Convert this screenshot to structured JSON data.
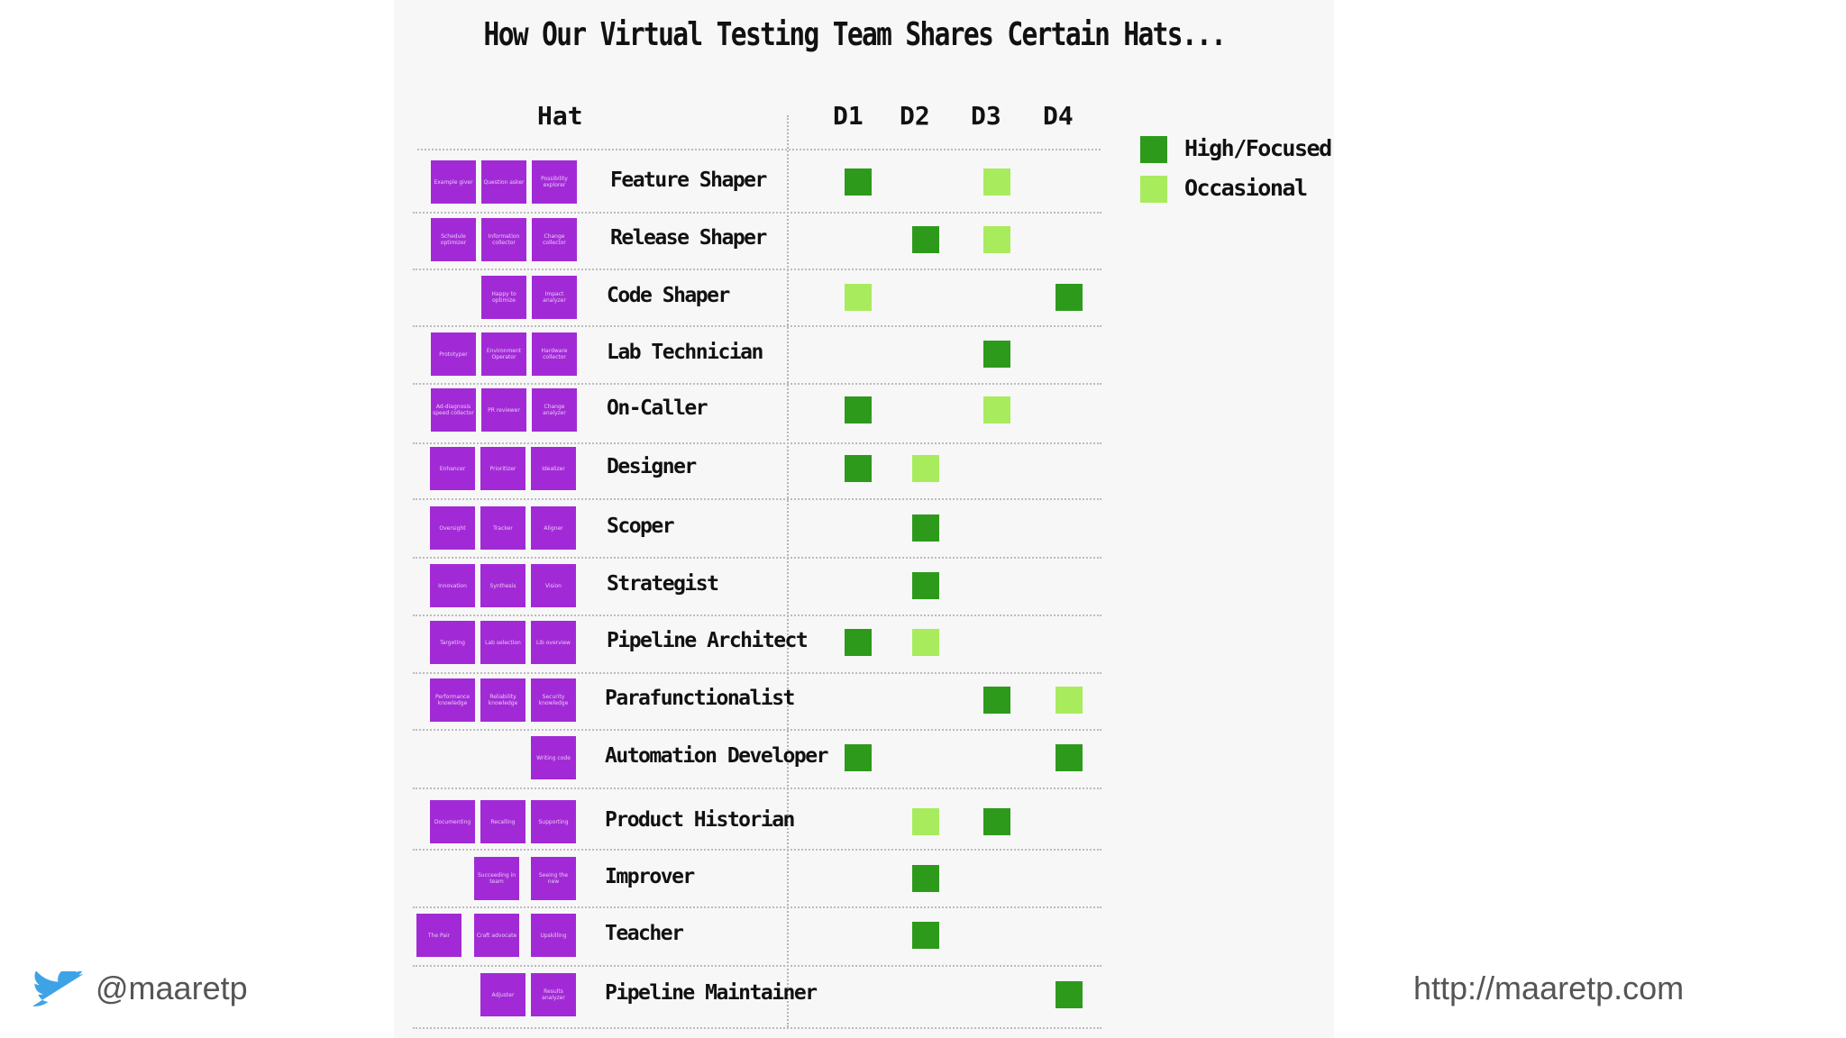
{
  "title": "How Our Virtual Testing Team Shares Certain Hats...",
  "header": {
    "hat": "Hat",
    "columns": [
      "D1",
      "D2",
      "D3",
      "D4"
    ]
  },
  "legend": [
    {
      "label": "High/Focused",
      "color": "#2e9a1c"
    },
    {
      "label": "Occasional",
      "color": "#a8ec5e"
    }
  ],
  "colors": {
    "high": "#2e9a1c",
    "occasional": "#a8ec5e",
    "sticky": "#a22ad6"
  },
  "rows": [
    {
      "name": "Feature Shaper",
      "notes": [
        "Example giver",
        "Question asker",
        "Possibility explorer"
      ],
      "levels": [
        "high",
        "",
        "occasional",
        ""
      ]
    },
    {
      "name": "Release Shaper",
      "notes": [
        "Schedule optimizer",
        "Information collector",
        "Change collector"
      ],
      "levels": [
        "",
        "high",
        "occasional",
        ""
      ]
    },
    {
      "name": "Code Shaper",
      "notes": [
        "",
        "Happy to optimize",
        "Impact analyzer"
      ],
      "levels": [
        "occasional",
        "",
        "",
        "high"
      ]
    },
    {
      "name": "Lab Technician",
      "notes": [
        "Prototyper",
        "Environment Operator",
        "Hardware collector"
      ],
      "levels": [
        "",
        "",
        "high",
        ""
      ]
    },
    {
      "name": "On-Caller",
      "notes": [
        "Ad-diagnosis speed collector",
        "PR reviewer",
        "Change analyzer"
      ],
      "levels": [
        "high",
        "",
        "occasional",
        ""
      ]
    },
    {
      "name": "Designer",
      "notes": [
        "Enhancer",
        "Prioritizer",
        "Idealizer"
      ],
      "levels": [
        "high",
        "occasional",
        "",
        ""
      ]
    },
    {
      "name": "Scoper",
      "notes": [
        "Oversight",
        "Tracker",
        "Aligner"
      ],
      "levels": [
        "",
        "high",
        "",
        ""
      ]
    },
    {
      "name": "Strategist",
      "notes": [
        "Innovation",
        "Synthesis",
        "Vision"
      ],
      "levels": [
        "",
        "high",
        "",
        ""
      ]
    },
    {
      "name": "Pipeline Architect",
      "notes": [
        "Targeting",
        "Lab selection",
        "Lib overview"
      ],
      "levels": [
        "high",
        "occasional",
        "",
        ""
      ]
    },
    {
      "name": "Parafunctionalist",
      "notes": [
        "Performance knowledge",
        "Reliability knowledge",
        "Security knowledge"
      ],
      "levels": [
        "",
        "",
        "high",
        "occasional"
      ]
    },
    {
      "name": "Automation Developer",
      "notes": [
        "",
        "",
        "Writing code"
      ],
      "levels": [
        "high",
        "",
        "",
        "high"
      ]
    },
    {
      "name": "Product Historian",
      "notes": [
        "Documenting",
        "Recalling",
        "Supporting"
      ],
      "levels": [
        "",
        "occasional",
        "high",
        ""
      ]
    },
    {
      "name": "Improver",
      "notes": [
        "",
        "Succeeding in team",
        "Seeing the new"
      ],
      "levels": [
        "",
        "high",
        "",
        ""
      ]
    },
    {
      "name": "Teacher",
      "notes": [
        "The Pair",
        "Craft advocate",
        "Upskilling"
      ],
      "levels": [
        "",
        "high",
        "",
        ""
      ]
    },
    {
      "name": "Pipeline Maintainer",
      "notes": [
        "",
        "Adjuster",
        "Results analyzer"
      ],
      "levels": [
        "",
        "",
        "",
        "high"
      ]
    }
  ],
  "footer": {
    "handle": "@maaretp",
    "url": "http://maaretp.com"
  },
  "icons": {
    "twitter": "twitter-bird-icon"
  }
}
